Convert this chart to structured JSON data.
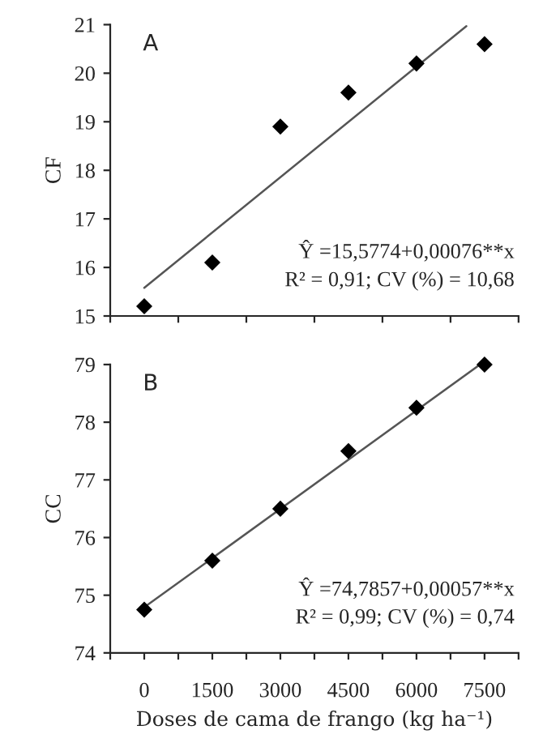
{
  "chart_data": [
    {
      "type": "scatter",
      "title": "A",
      "ylabel": "CF",
      "x": [
        0,
        1500,
        3000,
        4500,
        6000,
        7500
      ],
      "xlim": [
        -750,
        8250
      ],
      "xticks": [
        {
          "value": -750,
          "label": null
        },
        {
          "value": 750,
          "label": null
        },
        {
          "value": 2250,
          "label": null
        },
        {
          "value": 3750,
          "label": null
        },
        {
          "value": 5250,
          "label": null
        },
        {
          "value": 6750,
          "label": null
        },
        {
          "value": 8250,
          "label": null
        }
      ],
      "ylim": [
        15,
        21
      ],
      "yticks": [
        15,
        16,
        17,
        18,
        19,
        20,
        21
      ],
      "tick_labels": "y",
      "grid": false,
      "legend": false,
      "series": [
        {
          "color": "#000000",
          "marker": "diamond",
          "values": [
            15.2,
            16.1,
            18.9,
            19.6,
            20.2,
            20.6
          ]
        },
        {
          "type": "line",
          "marker": "none",
          "color": "#555555",
          "x": [
            0,
            7100
          ],
          "values": [
            15.58,
            20.97
          ]
        }
      ],
      "annotations": [
        "Ŷ =15,5774+0,00076**x",
        "R² = 0,91; CV (%) = 10,68"
      ]
    },
    {
      "type": "scatter",
      "title": "B",
      "ylabel": "CC",
      "xlabel": "Doses de cama de frango (kg ha⁻¹)",
      "x": [
        0,
        1500,
        3000,
        4500,
        6000,
        7500
      ],
      "xlim": [
        -750,
        8250
      ],
      "xticks": [
        {
          "value": -750,
          "label": null
        },
        {
          "value": 0,
          "label": "0"
        },
        {
          "value": 750,
          "label": null
        },
        {
          "value": 1500,
          "label": "1500"
        },
        {
          "value": 2250,
          "label": null
        },
        {
          "value": 3000,
          "label": "3000"
        },
        {
          "value": 3750,
          "label": null
        },
        {
          "value": 4500,
          "label": "4500"
        },
        {
          "value": 5250,
          "label": null
        },
        {
          "value": 6000,
          "label": "6000"
        },
        {
          "value": 6750,
          "label": null
        },
        {
          "value": 7500,
          "label": "7500"
        },
        {
          "value": 8250,
          "label": null
        }
      ],
      "ylim": [
        74,
        79
      ],
      "yticks": [
        74,
        75,
        76,
        77,
        78,
        79
      ],
      "grid": false,
      "legend": false,
      "series": [
        {
          "color": "#000000",
          "marker": "diamond",
          "values": [
            74.75,
            75.6,
            76.5,
            77.5,
            78.25,
            79.0
          ]
        },
        {
          "type": "line",
          "marker": "none",
          "color": "#555555",
          "x": [
            0,
            7400
          ],
          "values": [
            74.79,
            79.0
          ]
        }
      ],
      "annotations": [
        "Ŷ =74,7857+0,00057**x",
        "R² = 0,99; CV (%) = 0,74"
      ]
    }
  ]
}
